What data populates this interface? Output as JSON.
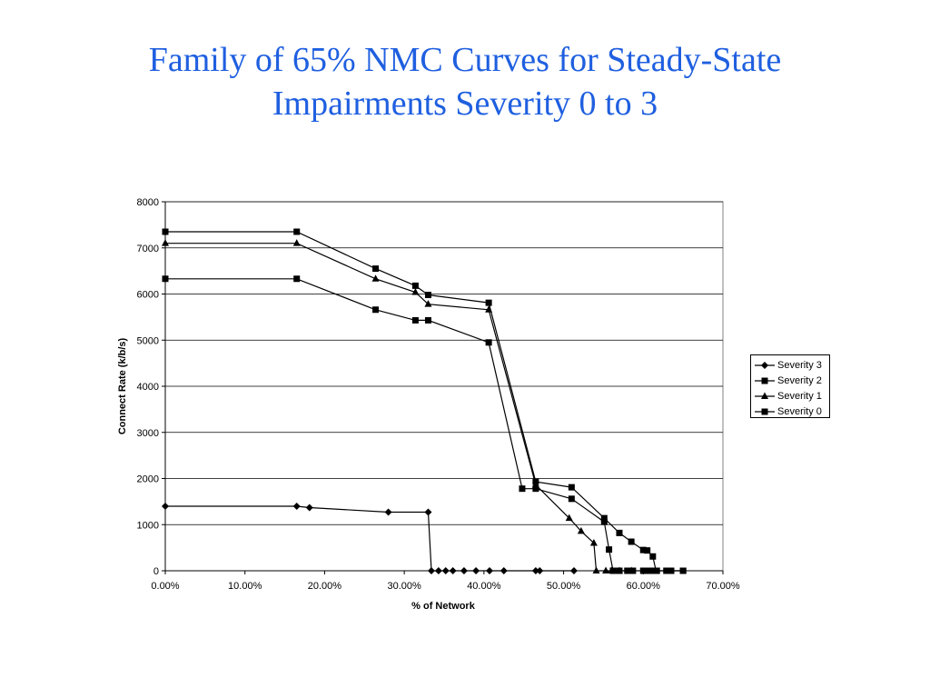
{
  "slide": {
    "title_line1": "Family of 65% NMC Curves for Steady-State",
    "title_line2": "Impairments Severity 0 to 3"
  },
  "chart_data": {
    "type": "line",
    "title": "",
    "xlabel": "% of Network",
    "ylabel": "Connect Rate (k/b/s)",
    "xlim": [
      0,
      70
    ],
    "ylim": [
      0,
      8000
    ],
    "x_ticks": [
      "0.00%",
      "10.00%",
      "20.00%",
      "30.00%",
      "40.00%",
      "50.00%",
      "60.00%",
      "70.00%"
    ],
    "y_ticks": [
      "0",
      "1000",
      "2000",
      "3000",
      "4000",
      "5000",
      "6000",
      "7000",
      "8000"
    ],
    "grid": "horizontal",
    "legend_position": "right",
    "series": [
      {
        "name": "Severity 3",
        "marker": "diamond",
        "x": [
          0,
          16.5,
          18.1,
          28,
          33,
          33.4,
          34.3,
          35.2,
          36.1,
          37.5,
          39,
          40.7,
          42.5,
          46.5,
          47,
          51.3
        ],
        "y": [
          1400,
          1400,
          1370,
          1270,
          1270,
          0,
          0,
          0,
          0,
          0,
          0,
          0,
          0,
          0,
          0,
          0
        ]
      },
      {
        "name": "Severity 2",
        "marker": "square",
        "x": [
          0,
          16.5,
          26.4,
          31.4,
          33,
          40.6,
          44.8,
          46.5,
          51,
          55.1,
          55.7,
          56.2,
          57,
          58,
          58.7,
          60,
          60.5,
          61.2,
          61.7,
          62.9,
          63.5,
          65
        ],
        "y": [
          6330,
          6330,
          5660,
          5430,
          5430,
          4950,
          1780,
          1780,
          1560,
          1060,
          460,
          0,
          0,
          0,
          0,
          0,
          0,
          0,
          0,
          0,
          0,
          0
        ]
      },
      {
        "name": "Severity 1",
        "marker": "triangle",
        "x": [
          0,
          16.5,
          26.4,
          31.4,
          33,
          40.6,
          46.5,
          50.7,
          52.2,
          53.8,
          54.1,
          55.3,
          56,
          57,
          58.5
        ],
        "y": [
          7100,
          7100,
          6330,
          6040,
          5780,
          5660,
          1860,
          1140,
          860,
          600,
          0,
          0,
          0,
          0,
          0
        ]
      },
      {
        "name": "Severity 0",
        "marker": "square",
        "x": [
          0,
          16.5,
          26.4,
          31.4,
          33,
          40.6,
          46.5,
          51,
          55.1,
          57,
          58.5,
          60,
          60.5,
          61.2,
          61.6,
          63,
          63.5,
          65
        ],
        "y": [
          7350,
          7350,
          6550,
          6180,
          5980,
          5810,
          1930,
          1810,
          1140,
          820,
          630,
          450,
          440,
          310,
          0,
          0,
          0,
          0
        ]
      }
    ]
  }
}
